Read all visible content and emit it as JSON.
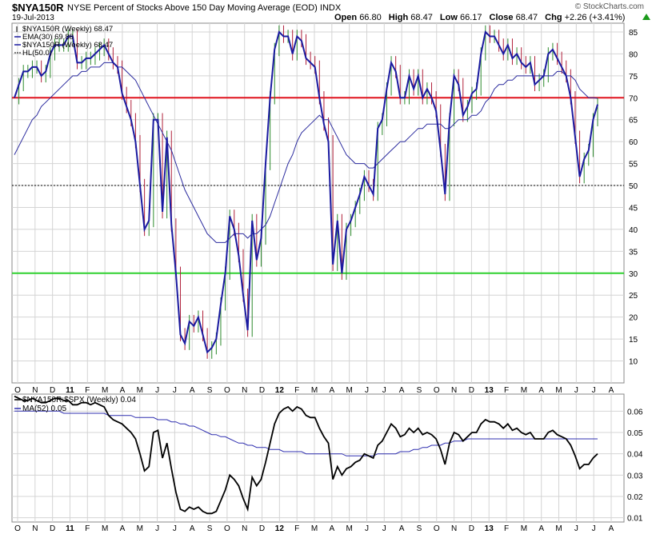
{
  "header": {
    "symbol": "$NYA150R",
    "description": "NYSE Percent of Stocks Above 150 Day Moving Average (EOD)",
    "exchange": "INDX",
    "date": "19-Jul-2013",
    "ohlc": {
      "open_label": "Open",
      "open": "66.80",
      "high_label": "High",
      "high": "68.47",
      "low_label": "Low",
      "low": "66.17",
      "close_label": "Close",
      "close": "68.47",
      "chg_label": "Chg",
      "chg": "+2.26 (+3.41%)"
    },
    "watermark": "© StockCharts.com",
    "up_arrow_icon": "triangle-up-icon"
  },
  "colors": {
    "price_line": "#1a1aa0",
    "ema_line": "#2a2a9e",
    "bar_up": "#2c8a2c",
    "bar_down": "#b0203a",
    "hline_red": "#e0141e",
    "hline_green": "#2ed12e",
    "hline_dotted": "#000000",
    "ratio_line": "#000000",
    "ma_line": "#3030b0",
    "grid": "#d4d4d4",
    "arrow": "#1b9a1b"
  },
  "x_axis_labels": [
    "O",
    "N",
    "D",
    "11",
    "F",
    "M",
    "A",
    "M",
    "J",
    "J",
    "A",
    "S",
    "O",
    "N",
    "D",
    "12",
    "F",
    "M",
    "A",
    "M",
    "J",
    "J",
    "A",
    "S",
    "O",
    "N",
    "D",
    "13",
    "F",
    "M",
    "A",
    "M",
    "J",
    "J",
    "A"
  ],
  "chart_data": [
    {
      "type": "line",
      "legend": [
        {
          "marker": "bar",
          "text": "$NYA150R (Weekly) 68.47"
        },
        {
          "marker": "line",
          "text": "EMA(30) 69.88"
        },
        {
          "marker": "line",
          "text": "$NYA150R (Weekly) 68.47"
        },
        {
          "marker": "dotted",
          "text": "HL(50.0)"
        }
      ],
      "yticks": [
        10,
        15,
        20,
        25,
        30,
        35,
        40,
        45,
        50,
        55,
        60,
        65,
        70,
        75,
        80,
        85
      ],
      "ylim": [
        5,
        87
      ],
      "hlines": [
        {
          "value": 70,
          "color": "red"
        },
        {
          "value": 50,
          "color": "dotted"
        },
        {
          "value": 30,
          "color": "green"
        }
      ],
      "series": [
        {
          "name": "$NYA150R (Weekly) 68.47",
          "values": [
            70,
            73,
            76,
            76,
            77,
            77,
            75,
            76,
            80,
            82,
            82,
            82,
            84,
            84,
            78,
            78,
            79,
            79,
            80,
            81,
            82,
            80,
            78,
            77,
            71,
            68,
            65,
            60,
            50,
            40,
            42,
            65,
            65,
            44,
            61,
            41,
            30,
            16,
            14,
            19,
            18,
            20,
            16,
            12,
            13,
            15,
            23,
            30,
            43,
            40,
            34,
            25,
            17,
            42,
            33,
            38,
            55,
            70,
            81,
            85,
            84,
            84,
            80,
            84,
            83,
            79,
            78,
            77,
            70,
            64,
            60,
            32,
            42,
            30,
            40,
            42,
            45,
            48,
            52,
            50,
            48,
            63,
            65,
            72,
            78,
            76,
            70,
            70,
            75,
            72,
            75,
            70,
            72,
            70,
            67,
            58,
            48,
            65,
            75,
            73,
            66,
            68,
            71,
            72,
            80,
            85,
            84,
            84,
            82,
            80,
            82,
            79,
            80,
            78,
            77,
            78,
            73,
            74,
            75,
            80,
            81,
            79,
            77,
            75,
            70,
            61,
            52,
            56,
            58,
            65,
            68.47
          ]
        },
        {
          "name": "EMA(30) 69.88",
          "values": [
            57,
            59,
            61,
            63,
            65,
            66,
            68,
            69,
            70,
            71,
            72,
            73,
            74,
            75,
            75,
            76,
            76,
            77,
            77,
            77,
            78,
            78,
            78,
            77,
            77,
            76,
            75,
            74,
            72,
            70,
            68,
            66,
            64,
            62,
            60,
            58,
            55,
            52,
            49,
            47,
            45,
            43,
            41,
            39,
            38,
            37,
            37,
            37,
            38,
            39,
            39,
            39,
            38,
            39,
            39,
            40,
            41,
            43,
            46,
            49,
            52,
            55,
            57,
            60,
            62,
            63,
            64,
            65,
            66,
            65,
            65,
            63,
            61,
            59,
            57,
            56,
            55,
            55,
            55,
            54,
            54,
            55,
            56,
            57,
            58,
            59,
            60,
            60,
            61,
            62,
            63,
            63,
            64,
            64,
            64,
            64,
            63,
            63,
            64,
            65,
            65,
            65,
            66,
            66,
            67,
            69,
            70,
            72,
            73,
            73,
            74,
            74,
            75,
            75,
            75,
            75,
            75,
            75,
            75,
            75,
            75,
            76,
            76,
            75,
            75,
            74,
            72,
            71,
            70,
            70,
            69.88
          ]
        }
      ]
    },
    {
      "type": "line",
      "legend": [
        {
          "marker": "line",
          "text": "$NYA150R:$SPX (Weekly) 0.04"
        },
        {
          "marker": "line",
          "text": "MA(52) 0.05"
        }
      ],
      "yticks": [
        "0.01",
        "0.02",
        "0.03",
        "0.04",
        "0.05",
        "0.06"
      ],
      "ylim": [
        0.008,
        0.068
      ],
      "series": [
        {
          "name": "$NYA150R:$SPX (Weekly) 0.04",
          "values": [
            0.067,
            0.066,
            0.065,
            0.065,
            0.066,
            0.065,
            0.064,
            0.064,
            0.065,
            0.066,
            0.066,
            0.065,
            0.065,
            0.063,
            0.063,
            0.064,
            0.064,
            0.063,
            0.064,
            0.063,
            0.062,
            0.058,
            0.056,
            0.055,
            0.054,
            0.052,
            0.05,
            0.047,
            0.04,
            0.032,
            0.034,
            0.05,
            0.051,
            0.038,
            0.045,
            0.033,
            0.022,
            0.014,
            0.013,
            0.015,
            0.014,
            0.015,
            0.013,
            0.012,
            0.012,
            0.013,
            0.018,
            0.023,
            0.03,
            0.028,
            0.025,
            0.019,
            0.014,
            0.029,
            0.025,
            0.028,
            0.036,
            0.045,
            0.054,
            0.059,
            0.061,
            0.062,
            0.06,
            0.062,
            0.061,
            0.058,
            0.057,
            0.057,
            0.052,
            0.048,
            0.045,
            0.028,
            0.034,
            0.03,
            0.033,
            0.034,
            0.036,
            0.037,
            0.04,
            0.039,
            0.038,
            0.044,
            0.046,
            0.05,
            0.054,
            0.052,
            0.048,
            0.049,
            0.052,
            0.05,
            0.052,
            0.049,
            0.05,
            0.049,
            0.047,
            0.042,
            0.035,
            0.045,
            0.05,
            0.049,
            0.046,
            0.048,
            0.05,
            0.05,
            0.054,
            0.056,
            0.055,
            0.055,
            0.054,
            0.052,
            0.054,
            0.051,
            0.052,
            0.05,
            0.049,
            0.05,
            0.047,
            0.047,
            0.047,
            0.05,
            0.051,
            0.049,
            0.048,
            0.047,
            0.044,
            0.039,
            0.033,
            0.035,
            0.035,
            0.038,
            0.04
          ]
        },
        {
          "name": "MA(52) 0.05",
          "values": [
            0.06,
            0.06,
            0.06,
            0.06,
            0.06,
            0.06,
            0.06,
            0.06,
            0.06,
            0.06,
            0.06,
            0.059,
            0.059,
            0.059,
            0.059,
            0.059,
            0.059,
            0.059,
            0.059,
            0.059,
            0.059,
            0.058,
            0.058,
            0.058,
            0.058,
            0.058,
            0.058,
            0.057,
            0.057,
            0.057,
            0.057,
            0.057,
            0.056,
            0.056,
            0.056,
            0.055,
            0.055,
            0.054,
            0.054,
            0.053,
            0.053,
            0.052,
            0.051,
            0.05,
            0.049,
            0.049,
            0.048,
            0.048,
            0.047,
            0.046,
            0.045,
            0.045,
            0.044,
            0.044,
            0.043,
            0.043,
            0.043,
            0.042,
            0.042,
            0.042,
            0.041,
            0.041,
            0.041,
            0.041,
            0.041,
            0.04,
            0.04,
            0.04,
            0.04,
            0.04,
            0.04,
            0.04,
            0.04,
            0.04,
            0.039,
            0.039,
            0.039,
            0.039,
            0.039,
            0.039,
            0.039,
            0.04,
            0.04,
            0.04,
            0.04,
            0.04,
            0.041,
            0.041,
            0.041,
            0.042,
            0.042,
            0.043,
            0.043,
            0.044,
            0.044,
            0.044,
            0.045,
            0.045,
            0.046,
            0.046,
            0.046,
            0.047,
            0.047,
            0.047,
            0.047,
            0.047,
            0.047,
            0.047,
            0.047,
            0.047,
            0.047,
            0.047,
            0.047,
            0.047,
            0.047,
            0.047,
            0.047,
            0.047,
            0.047,
            0.047,
            0.047,
            0.047,
            0.047,
            0.047,
            0.047,
            0.047,
            0.047,
            0.047,
            0.047,
            0.047,
            0.047
          ]
        }
      ]
    }
  ]
}
